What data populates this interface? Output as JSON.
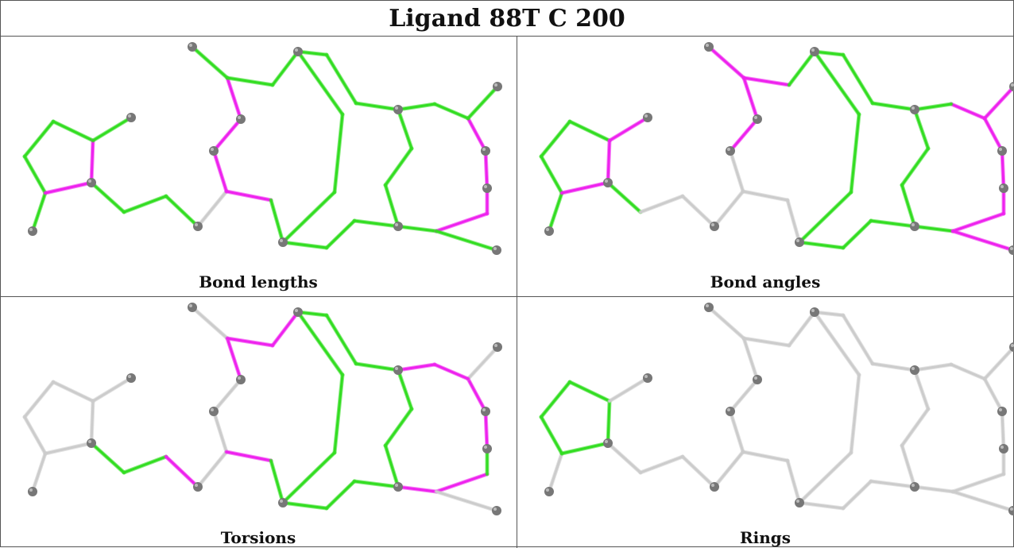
{
  "title": "Ligand 88T C 200",
  "colors": {
    "outlier": "#ee22ee",
    "ok": "#33dd22",
    "none": "#cccccc",
    "atom": "#777777"
  },
  "panels": [
    {
      "caption": "Bond lengths"
    },
    {
      "caption": "Bond angles"
    },
    {
      "caption": "Torsions"
    },
    {
      "caption": "Rings"
    }
  ]
}
